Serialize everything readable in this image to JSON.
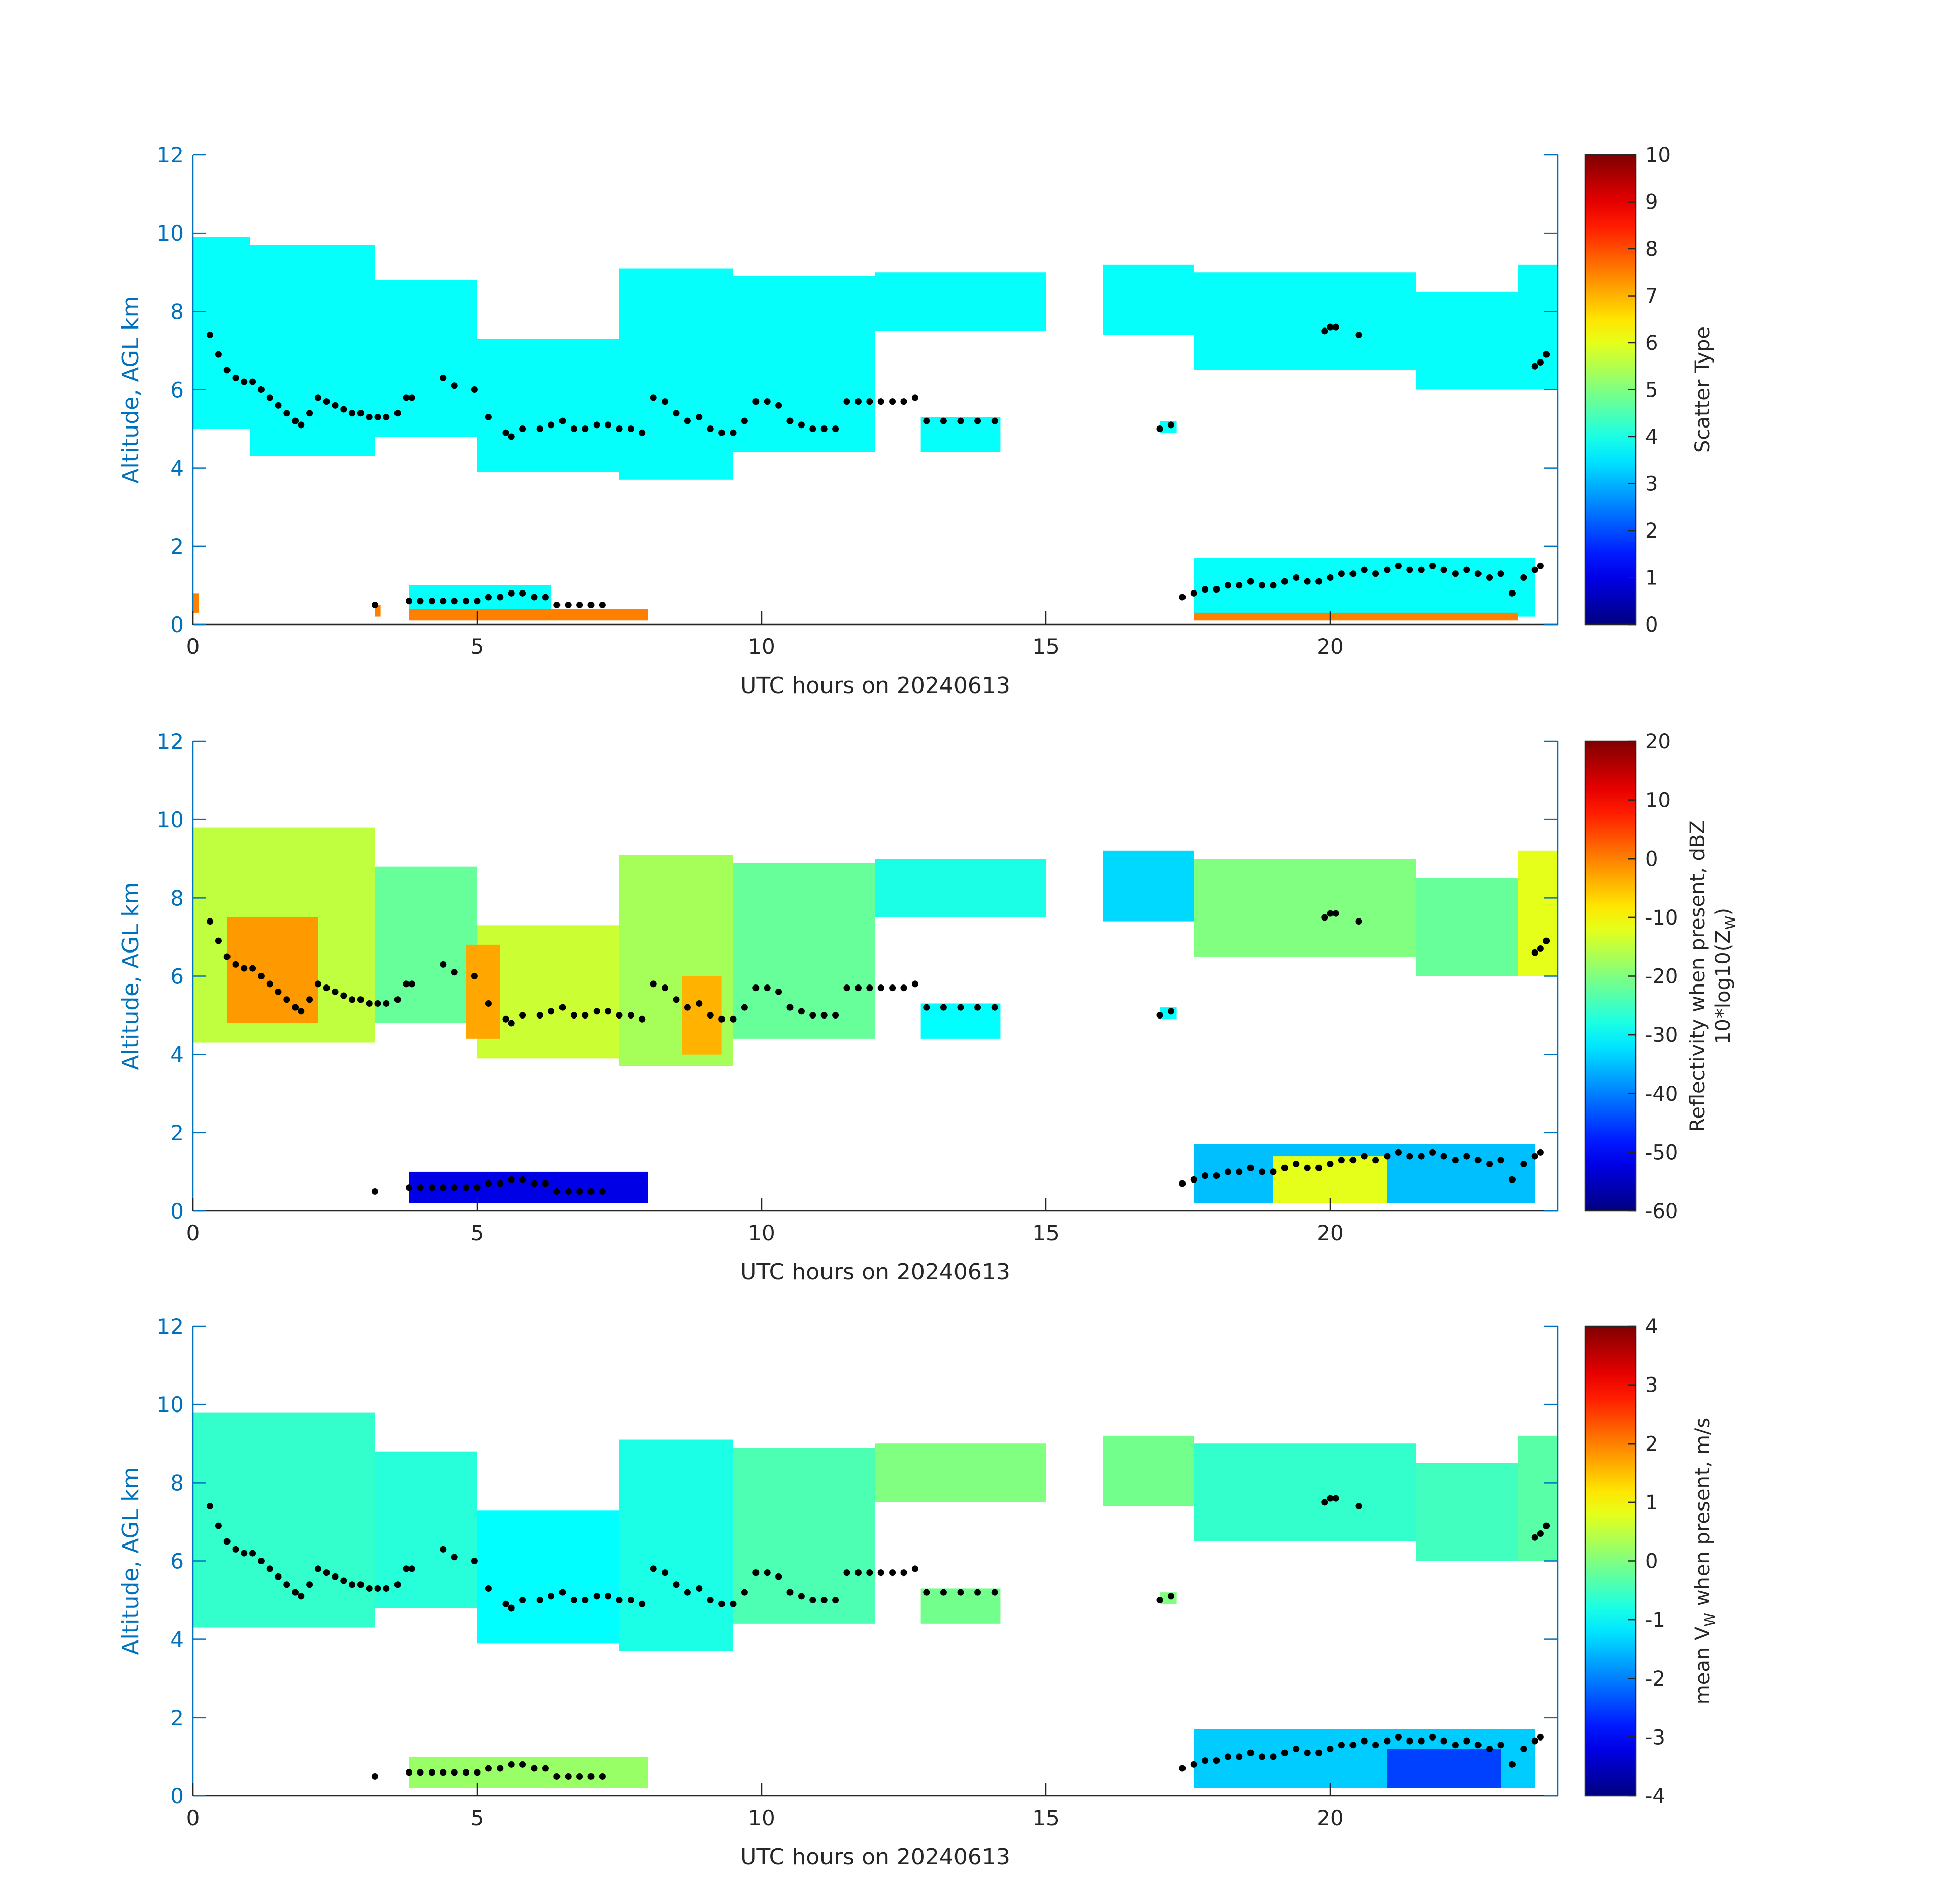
{
  "figure": {
    "background": "#ffffff",
    "axis_color_left": "#0072bd",
    "axis_color_bottom": "#262626",
    "colormap": "jet"
  },
  "chart_data": [
    {
      "type": "heatmap",
      "id": "scatter-type",
      "xlabel": "UTC hours on 20240613",
      "ylabel": "Altitude, AGL km",
      "xlim": [
        0,
        24
      ],
      "ylim": [
        0,
        12
      ],
      "xticks": [
        0,
        5,
        10,
        15,
        20
      ],
      "yticks": [
        0,
        2,
        4,
        6,
        8,
        10,
        12
      ],
      "colorbar": {
        "label": "Scatter Type",
        "label_sub": "",
        "label_line2": "",
        "range": [
          0,
          10
        ],
        "ticks": [
          0,
          1,
          2,
          3,
          4,
          5,
          6,
          7,
          8,
          9,
          10
        ]
      },
      "cloud_regions": [
        {
          "x0": 0.0,
          "x1": 1.0,
          "y_bottom": 5.0,
          "y_top": 9.9,
          "value": 3.8
        },
        {
          "x0": 1.0,
          "x1": 3.2,
          "y_bottom": 4.3,
          "y_top": 9.7,
          "value": 3.8
        },
        {
          "x0": 3.2,
          "x1": 5.0,
          "y_bottom": 4.8,
          "y_top": 8.8,
          "value": 3.8
        },
        {
          "x0": 5.0,
          "x1": 7.5,
          "y_bottom": 3.9,
          "y_top": 7.3,
          "value": 3.8
        },
        {
          "x0": 7.5,
          "x1": 9.5,
          "y_bottom": 3.7,
          "y_top": 9.1,
          "value": 3.8
        },
        {
          "x0": 9.5,
          "x1": 12.0,
          "y_bottom": 4.4,
          "y_top": 8.9,
          "value": 3.8
        },
        {
          "x0": 12.0,
          "x1": 15.0,
          "y_bottom": 7.5,
          "y_top": 9.0,
          "value": 3.8
        },
        {
          "x0": 16.0,
          "x1": 17.6,
          "y_bottom": 7.4,
          "y_top": 9.2,
          "value": 3.8
        },
        {
          "x0": 17.6,
          "x1": 21.5,
          "y_bottom": 6.5,
          "y_top": 9.0,
          "value": 3.8
        },
        {
          "x0": 21.5,
          "x1": 23.3,
          "y_bottom": 6.0,
          "y_top": 8.5,
          "value": 3.8
        },
        {
          "x0": 23.3,
          "x1": 24.0,
          "y_bottom": 6.0,
          "y_top": 9.2,
          "value": 3.8
        },
        {
          "x0": 12.8,
          "x1": 14.2,
          "y_bottom": 4.4,
          "y_top": 5.3,
          "value": 3.8
        },
        {
          "x0": 17.0,
          "x1": 17.3,
          "y_bottom": 4.9,
          "y_top": 5.2,
          "value": 3.8
        },
        {
          "x0": 3.8,
          "x1": 6.3,
          "y_bottom": 0.2,
          "y_top": 1.0,
          "value": 3.8
        },
        {
          "x0": 17.6,
          "x1": 23.6,
          "y_bottom": 0.2,
          "y_top": 1.7,
          "value": 3.8
        },
        {
          "x0": 0.0,
          "x1": 0.1,
          "y_bottom": 0.3,
          "y_top": 0.8,
          "value": 7.5
        },
        {
          "x0": 3.2,
          "x1": 3.3,
          "y_bottom": 0.2,
          "y_top": 0.5,
          "value": 7.5
        },
        {
          "x0": 3.8,
          "x1": 8.0,
          "y_bottom": 0.1,
          "y_top": 0.4,
          "value": 7.5
        },
        {
          "x0": 17.6,
          "x1": 23.3,
          "y_bottom": 0.1,
          "y_top": 0.3,
          "value": 7.5
        }
      ]
    },
    {
      "type": "heatmap",
      "id": "reflectivity",
      "xlabel": "UTC hours on 20240613",
      "ylabel": "Altitude, AGL km",
      "xlim": [
        0,
        24
      ],
      "ylim": [
        0,
        12
      ],
      "xticks": [
        0,
        5,
        10,
        15,
        20
      ],
      "yticks": [
        0,
        2,
        4,
        6,
        8,
        10,
        12
      ],
      "colorbar": {
        "label": "Reflectivity when present, dBZ",
        "label_sub": "",
        "label_line2": "10*log10(Z",
        "label_line2_sub": "W",
        "label_line2_end": ")",
        "range": [
          -60,
          20
        ],
        "ticks": [
          -60,
          -50,
          -40,
          -30,
          -20,
          -10,
          0,
          10,
          20
        ]
      },
      "cloud_regions": [
        {
          "x0": 0.0,
          "x1": 3.2,
          "y_bottom": 4.3,
          "y_top": 9.8,
          "value": -15
        },
        {
          "x0": 0.6,
          "x1": 2.2,
          "y_bottom": 4.8,
          "y_top": 7.5,
          "value": -2
        },
        {
          "x0": 3.2,
          "x1": 5.0,
          "y_bottom": 4.8,
          "y_top": 8.8,
          "value": -22
        },
        {
          "x0": 5.0,
          "x1": 7.5,
          "y_bottom": 3.9,
          "y_top": 7.3,
          "value": -14
        },
        {
          "x0": 4.8,
          "x1": 5.4,
          "y_bottom": 4.4,
          "y_top": 6.8,
          "value": -3
        },
        {
          "x0": 7.5,
          "x1": 9.5,
          "y_bottom": 3.7,
          "y_top": 9.1,
          "value": -17
        },
        {
          "x0": 8.6,
          "x1": 9.3,
          "y_bottom": 4.0,
          "y_top": 6.0,
          "value": -4
        },
        {
          "x0": 9.5,
          "x1": 12.0,
          "y_bottom": 4.4,
          "y_top": 8.9,
          "value": -22
        },
        {
          "x0": 12.0,
          "x1": 15.0,
          "y_bottom": 7.5,
          "y_top": 9.0,
          "value": -28
        },
        {
          "x0": 16.0,
          "x1": 17.6,
          "y_bottom": 7.4,
          "y_top": 9.2,
          "value": -33
        },
        {
          "x0": 17.6,
          "x1": 21.5,
          "y_bottom": 6.5,
          "y_top": 9.0,
          "value": -20
        },
        {
          "x0": 21.5,
          "x1": 23.3,
          "y_bottom": 6.0,
          "y_top": 8.5,
          "value": -22
        },
        {
          "x0": 23.3,
          "x1": 24.0,
          "y_bottom": 6.0,
          "y_top": 9.2,
          "value": -12
        },
        {
          "x0": 12.8,
          "x1": 14.2,
          "y_bottom": 4.4,
          "y_top": 5.3,
          "value": -30
        },
        {
          "x0": 17.0,
          "x1": 17.3,
          "y_bottom": 4.9,
          "y_top": 5.2,
          "value": -30
        },
        {
          "x0": 3.8,
          "x1": 8.0,
          "y_bottom": 0.2,
          "y_top": 1.0,
          "value": -52
        },
        {
          "x0": 17.6,
          "x1": 23.6,
          "y_bottom": 0.2,
          "y_top": 1.7,
          "value": -35
        },
        {
          "x0": 19.0,
          "x1": 21.0,
          "y_bottom": 0.2,
          "y_top": 1.4,
          "value": -12
        }
      ]
    },
    {
      "type": "heatmap",
      "id": "doppler-velocity",
      "xlabel": "UTC hours on 20240613",
      "ylabel": "Altitude, AGL km",
      "xlim": [
        0,
        24
      ],
      "ylim": [
        0,
        12
      ],
      "xticks": [
        0,
        5,
        10,
        15,
        20
      ],
      "yticks": [
        0,
        2,
        4,
        6,
        8,
        10,
        12
      ],
      "colorbar": {
        "label": "mean V",
        "label_sub": "W",
        "label_end": " when present, m/s",
        "range": [
          -4,
          4
        ],
        "ticks": [
          -4,
          -3,
          -2,
          -1,
          0,
          1,
          2,
          3,
          4
        ]
      },
      "cloud_regions": [
        {
          "x0": 0.0,
          "x1": 3.2,
          "y_bottom": 4.3,
          "y_top": 9.8,
          "value": -0.6
        },
        {
          "x0": 3.2,
          "x1": 5.0,
          "y_bottom": 4.8,
          "y_top": 8.8,
          "value": -0.7
        },
        {
          "x0": 5.0,
          "x1": 7.5,
          "y_bottom": 3.9,
          "y_top": 7.3,
          "value": -1.0
        },
        {
          "x0": 7.5,
          "x1": 9.5,
          "y_bottom": 3.7,
          "y_top": 9.1,
          "value": -0.8
        },
        {
          "x0": 9.5,
          "x1": 12.0,
          "y_bottom": 4.4,
          "y_top": 8.9,
          "value": -0.4
        },
        {
          "x0": 12.0,
          "x1": 15.0,
          "y_bottom": 7.5,
          "y_top": 9.0,
          "value": 0.0
        },
        {
          "x0": 16.0,
          "x1": 17.6,
          "y_bottom": 7.4,
          "y_top": 9.2,
          "value": -0.1
        },
        {
          "x0": 17.6,
          "x1": 21.5,
          "y_bottom": 6.5,
          "y_top": 9.0,
          "value": -0.6
        },
        {
          "x0": 21.5,
          "x1": 23.3,
          "y_bottom": 6.0,
          "y_top": 8.5,
          "value": -0.5
        },
        {
          "x0": 23.3,
          "x1": 24.0,
          "y_bottom": 6.0,
          "y_top": 9.2,
          "value": -0.3
        },
        {
          "x0": 12.8,
          "x1": 14.2,
          "y_bottom": 4.4,
          "y_top": 5.3,
          "value": -0.1
        },
        {
          "x0": 17.0,
          "x1": 17.3,
          "y_bottom": 4.9,
          "y_top": 5.2,
          "value": 0.0
        },
        {
          "x0": 3.8,
          "x1": 8.0,
          "y_bottom": 0.2,
          "y_top": 1.0,
          "value": 0.2
        },
        {
          "x0": 17.6,
          "x1": 23.6,
          "y_bottom": 0.2,
          "y_top": 1.7,
          "value": -1.4
        },
        {
          "x0": 21.0,
          "x1": 23.0,
          "y_bottom": 0.2,
          "y_top": 1.2,
          "value": -2.5
        }
      ]
    }
  ],
  "black_points": {
    "x": [
      0.3,
      0.45,
      0.6,
      0.75,
      0.9,
      1.05,
      1.2,
      1.35,
      1.5,
      1.65,
      1.8,
      1.9,
      2.05,
      2.2,
      2.35,
      2.5,
      2.65,
      2.8,
      2.95,
      3.1,
      3.25,
      3.4,
      3.6,
      3.75,
      3.85,
      4.4,
      4.6,
      4.95,
      5.2,
      5.5,
      5.6,
      5.8,
      6.1,
      6.3,
      6.5,
      6.7,
      6.9,
      7.1,
      7.3,
      7.5,
      7.7,
      7.9,
      8.1,
      8.3,
      8.5,
      8.7,
      8.9,
      9.1,
      9.3,
      9.5,
      9.7,
      9.9,
      10.1,
      10.3,
      10.5,
      10.7,
      10.9,
      11.1,
      11.3,
      11.5,
      11.7,
      11.9,
      12.1,
      12.3,
      12.5,
      12.7,
      12.9,
      13.2,
      13.5,
      13.8,
      14.1,
      17.0,
      17.2,
      19.9,
      20.0,
      20.1,
      20.5,
      23.6,
      23.7,
      23.8,
      3.2,
      3.8,
      4.0,
      4.2,
      4.4,
      4.6,
      4.8,
      5.0,
      5.2,
      5.4,
      5.6,
      5.8,
      6.0,
      6.2,
      6.4,
      6.6,
      6.8,
      7.0,
      7.2,
      17.4,
      17.6,
      17.8,
      18.0,
      18.2,
      18.4,
      18.6,
      18.8,
      19.0,
      19.2,
      19.4,
      19.6,
      19.8,
      20.0,
      20.2,
      20.4,
      20.6,
      20.8,
      21.0,
      21.2,
      21.4,
      21.6,
      21.8,
      22.0,
      22.2,
      22.4,
      22.6,
      22.8,
      23.0,
      23.2,
      23.4,
      23.6,
      23.7
    ],
    "y": [
      7.4,
      6.9,
      6.5,
      6.3,
      6.2,
      6.2,
      6.0,
      5.8,
      5.6,
      5.4,
      5.2,
      5.1,
      5.4,
      5.8,
      5.7,
      5.6,
      5.5,
      5.4,
      5.4,
      5.3,
      5.3,
      5.3,
      5.4,
      5.8,
      5.8,
      6.3,
      6.1,
      6.0,
      5.3,
      4.9,
      4.8,
      5.0,
      5.0,
      5.1,
      5.2,
      5.0,
      5.0,
      5.1,
      5.1,
      5.0,
      5.0,
      4.9,
      5.8,
      5.7,
      5.4,
      5.2,
      5.3,
      5.0,
      4.9,
      4.9,
      5.2,
      5.7,
      5.7,
      5.6,
      5.2,
      5.1,
      5.0,
      5.0,
      5.0,
      5.7,
      5.7,
      5.7,
      5.7,
      5.7,
      5.7,
      5.8,
      5.2,
      5.2,
      5.2,
      5.2,
      5.2,
      5.0,
      5.1,
      7.5,
      7.6,
      7.6,
      7.4,
      6.6,
      6.7,
      6.9,
      0.5,
      0.6,
      0.6,
      0.6,
      0.6,
      0.6,
      0.6,
      0.6,
      0.7,
      0.7,
      0.8,
      0.8,
      0.7,
      0.7,
      0.5,
      0.5,
      0.5,
      0.5,
      0.5,
      0.7,
      0.8,
      0.9,
      0.9,
      1.0,
      1.0,
      1.1,
      1.0,
      1.0,
      1.1,
      1.2,
      1.1,
      1.1,
      1.2,
      1.3,
      1.3,
      1.4,
      1.3,
      1.4,
      1.5,
      1.4,
      1.4,
      1.5,
      1.4,
      1.3,
      1.4,
      1.3,
      1.2,
      1.3,
      0.8,
      1.2,
      1.4,
      1.5
    ]
  }
}
